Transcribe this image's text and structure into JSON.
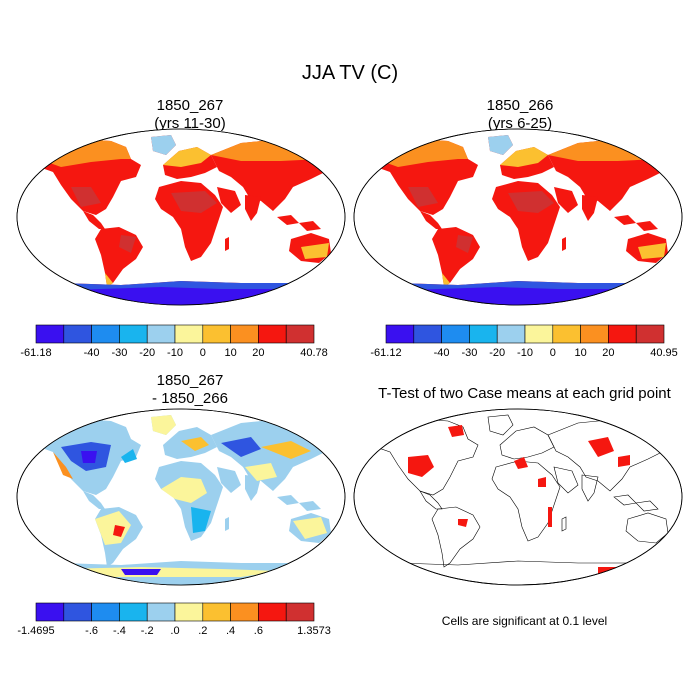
{
  "main_title": "JJA TV (C)",
  "panels": [
    {
      "id": "p1",
      "title_line1": "1850_267",
      "title_line2": "(yrs 11-30)"
    },
    {
      "id": "p2",
      "title_line1": "1850_266",
      "title_line2": "(yrs 6-25)"
    },
    {
      "id": "p3",
      "title_line1": "1850_267",
      "title_line2": "- 1850_266"
    },
    {
      "id": "p4",
      "title_line1": "T-Test of two Case means at each grid point",
      "title_line2": ""
    }
  ],
  "colorbars": [
    {
      "id": "cb1",
      "colors": [
        "#3a10f0",
        "#2f55e0",
        "#1e8cf0",
        "#19b4ee",
        "#9cd0ee",
        "#fbf59b",
        "#fbc030",
        "#fb9020",
        "#f51710",
        "#d03030"
      ],
      "labels": [
        "-61.18",
        "-40",
        "-30",
        "-20",
        "-10",
        "0",
        "10",
        "20",
        "40.78"
      ]
    },
    {
      "id": "cb2",
      "colors": [
        "#3a10f0",
        "#2f55e0",
        "#1e8cf0",
        "#19b4ee",
        "#9cd0ee",
        "#fbf59b",
        "#fbc030",
        "#fb9020",
        "#f51710",
        "#d03030"
      ],
      "labels": [
        "-61.12",
        "-40",
        "-30",
        "-20",
        "-10",
        "0",
        "10",
        "20",
        "40.95"
      ]
    },
    {
      "id": "cb3",
      "colors": [
        "#3a10f0",
        "#2f55e0",
        "#1e8cf0",
        "#19b4ee",
        "#9cd0ee",
        "#fbf59b",
        "#fbc030",
        "#fb9020",
        "#f51710",
        "#d03030"
      ],
      "labels": [
        "-1.4695",
        "-.6",
        "-.4",
        "-.2",
        ".0",
        ".2",
        ".4",
        ".6",
        "1.3573"
      ]
    }
  ],
  "significance_note": "Cells are significant at 0.1 level",
  "map_colors": {
    "hot": "#d03030",
    "warm": "#f51710",
    "orange": "#fb9020",
    "amber": "#fbc030",
    "cold": "#2f55e0",
    "diff_blue": "#19b4ee",
    "diff_light": "#9cd0ee",
    "diff_yellow": "#fbf59b",
    "signif": "#f51710"
  }
}
